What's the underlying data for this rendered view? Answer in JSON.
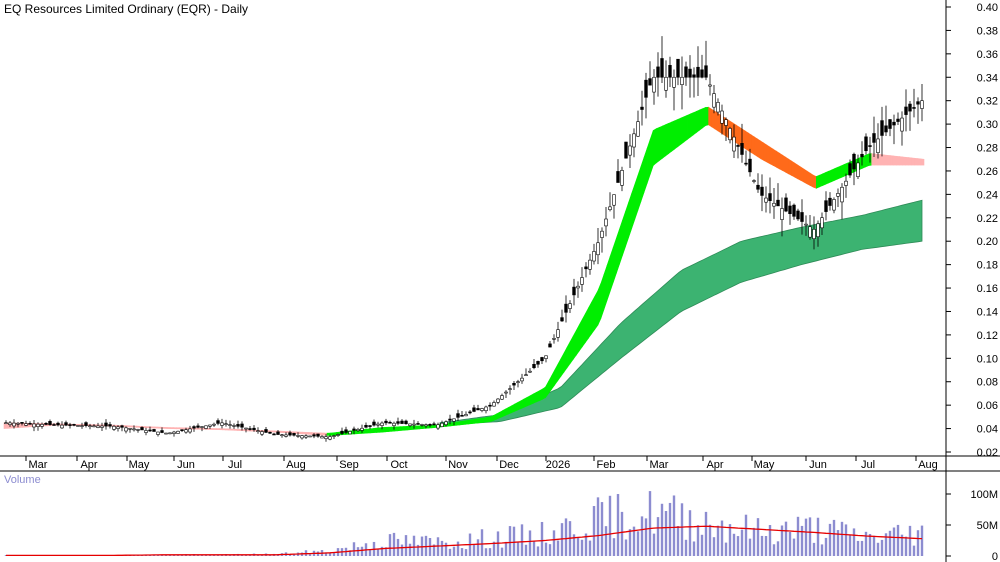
{
  "chart_data": [
    {
      "type": "candlestick",
      "title": "EQ Resources Limited Ordinary (EQR) - Daily",
      "ylim": [
        0.01,
        0.405
      ],
      "y_ticks": [
        0.4,
        0.38,
        0.36,
        0.34,
        0.32,
        0.3,
        0.28,
        0.26,
        0.24,
        0.22,
        0.2,
        0.18,
        0.16,
        0.14,
        0.12,
        0.1,
        0.08,
        0.06,
        0.04,
        0.02
      ],
      "x_labels": [
        "Mar",
        "Apr",
        "May",
        "Jun",
        "Jul",
        "Aug",
        "Sep",
        "Oct",
        "Nov",
        "Dec",
        "2026",
        "Feb",
        "Mar",
        "Apr",
        "May",
        "Jun",
        "Jul",
        "Aug"
      ],
      "price_series": {
        "name": "Close",
        "x": [
          "Mar",
          "Apr",
          "May",
          "Jun",
          "Jul",
          "Aug",
          "Sep",
          "Oct",
          "Nov",
          "Dec",
          "2026",
          "Feb",
          "Mar",
          "Apr",
          "May",
          "Jun",
          "Jul",
          "Aug"
        ],
        "values": [
          0.045,
          0.043,
          0.042,
          0.036,
          0.045,
          0.035,
          0.033,
          0.045,
          0.043,
          0.06,
          0.1,
          0.2,
          0.34,
          0.34,
          0.24,
          0.21,
          0.28,
          0.32
        ]
      },
      "short_term_ma_band": {
        "x": [
          "Mar",
          "Apr",
          "May",
          "Jun",
          "Jul",
          "Aug",
          "Sep",
          "Oct",
          "Nov",
          "Dec",
          "2026",
          "Feb",
          "Mar",
          "Apr",
          "May",
          "Jun",
          "Jul",
          "Aug"
        ],
        "upper": [
          0.045,
          0.044,
          0.043,
          0.041,
          0.04,
          0.038,
          0.036,
          0.041,
          0.043,
          0.05,
          0.075,
          0.16,
          0.295,
          0.315,
          0.285,
          0.255,
          0.275,
          0.27
        ],
        "lower": [
          0.04,
          0.043,
          0.042,
          0.04,
          0.039,
          0.037,
          0.034,
          0.037,
          0.041,
          0.046,
          0.066,
          0.13,
          0.265,
          0.3,
          0.27,
          0.245,
          0.265,
          0.265
        ]
      },
      "long_term_ma_band": {
        "x": [
          "Dec",
          "2026",
          "Feb",
          "Mar",
          "Apr",
          "May",
          "Jun",
          "Jul",
          "Aug"
        ],
        "upper": [
          0.045,
          0.052,
          0.075,
          0.13,
          0.175,
          0.2,
          0.212,
          0.222,
          0.235
        ],
        "lower": [
          0.043,
          0.046,
          0.058,
          0.1,
          0.14,
          0.165,
          0.18,
          0.193,
          0.2
        ]
      },
      "colors": {
        "up_band": "#00ee00",
        "down_band": "#ff6a1a",
        "weak_band": "#ffb3b3",
        "long_band": "#3cb371",
        "candle": "#000000"
      },
      "grid": false,
      "axis_position": "right"
    },
    {
      "type": "bar",
      "title": "Volume",
      "y_ticks": [
        "100M",
        "50M",
        "0"
      ],
      "ylim": [
        0,
        120
      ],
      "unit": "M",
      "x": [
        "Mar",
        "Apr",
        "May",
        "Jun",
        "Jul",
        "Aug",
        "Sep",
        "Oct",
        "Nov",
        "Dec",
        "2026",
        "Feb",
        "Mar",
        "Apr",
        "May",
        "Jun",
        "Jul",
        "Aug"
      ],
      "values": [
        1,
        1,
        1,
        2,
        2,
        3,
        8,
        25,
        22,
        28,
        35,
        60,
        70,
        55,
        40,
        45,
        30,
        40
      ],
      "average": [
        1,
        1,
        1,
        2,
        2,
        2,
        5,
        12,
        16,
        20,
        25,
        33,
        45,
        48,
        43,
        38,
        32,
        28
      ],
      "colors": {
        "bars": "#8c8cd0",
        "average": "#e60000"
      }
    }
  ]
}
